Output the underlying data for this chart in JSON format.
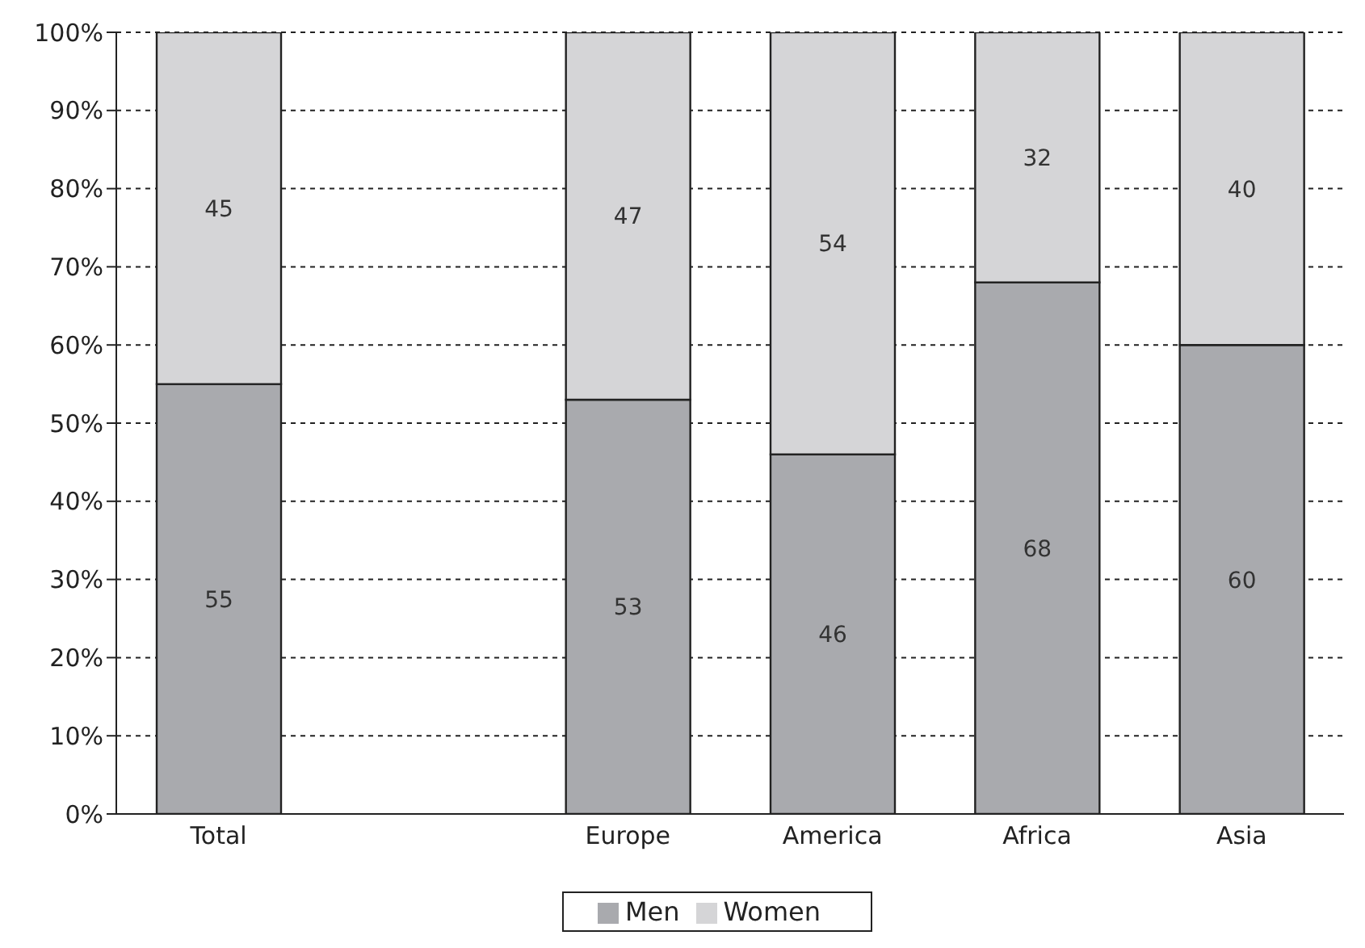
{
  "chart_data": {
    "type": "bar",
    "stacked": true,
    "categories": [
      "Total",
      null,
      "Europe",
      "America",
      "Africa",
      "Asia"
    ],
    "series": [
      {
        "name": "Men",
        "color": "#a9aaae",
        "values": [
          55,
          null,
          53,
          46,
          68,
          60
        ]
      },
      {
        "name": "Women",
        "color": "#d5d5d7",
        "values": [
          45,
          null,
          47,
          54,
          32,
          40
        ]
      }
    ],
    "ylim": [
      0,
      100
    ],
    "yticks": [
      {
        "value": 0,
        "label": "0%"
      },
      {
        "value": 10,
        "label": "10%"
      },
      {
        "value": 20,
        "label": "20%"
      },
      {
        "value": 30,
        "label": "30%"
      },
      {
        "value": 40,
        "label": "40%"
      },
      {
        "value": 50,
        "label": "50%"
      },
      {
        "value": 60,
        "label": "60%"
      },
      {
        "value": 70,
        "label": "70%"
      },
      {
        "value": 80,
        "label": "80%"
      },
      {
        "value": 90,
        "label": "90%"
      },
      {
        "value": 100,
        "label": "100%"
      }
    ],
    "grid": "y",
    "legend": "bottom",
    "data_labels": true
  }
}
